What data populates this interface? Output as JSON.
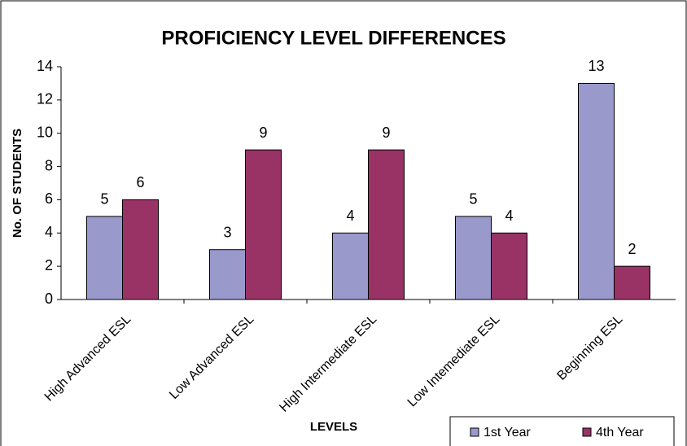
{
  "chart_data": {
    "type": "bar",
    "title": "PROFICIENCY LEVEL DIFFERENCES",
    "x_label": "LEVELS",
    "y_label": "No. OF STUDENTS",
    "categories": [
      "High Advanced ESL",
      "Low Advanced ESL",
      "High Intermediate ESL",
      "Low Intemediate ESL",
      "Beginning ESL"
    ],
    "series": [
      {
        "name": "1st Year",
        "color": "#9999cc",
        "values": [
          5,
          3,
          4,
          5,
          13
        ]
      },
      {
        "name": "4th Year",
        "color": "#993366",
        "values": [
          6,
          9,
          9,
          4,
          2
        ]
      }
    ],
    "ylim": [
      0,
      14
    ],
    "yticks": [
      0,
      2,
      4,
      6,
      8,
      10,
      12,
      14
    ],
    "grid": false,
    "legend": "bottom-right"
  }
}
